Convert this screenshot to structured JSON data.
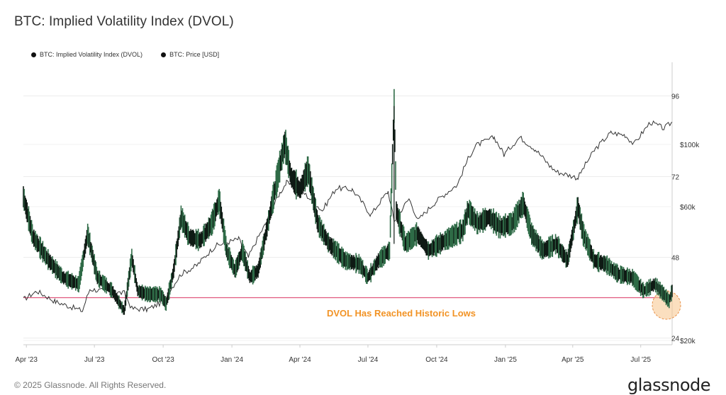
{
  "title": "BTC: Implied Volatility Index (DVOL)",
  "footer": {
    "copyright": "© 2025 Glassnode. All Rights Reserved.",
    "brand": "glassnode"
  },
  "colors": {
    "dvol": "#0f1a14",
    "dvol_fill": "#2f6b47",
    "price": "#333333",
    "reference_line": "#e0577e",
    "annotation": "#f29325",
    "highlight": "#f7c48a"
  },
  "chart_data": {
    "type": "line",
    "title": "BTC: Implied Volatility Index (DVOL)",
    "legend": [
      "BTC: Implied Volatility Index (DVOL)",
      "BTC: Price [USD]"
    ],
    "legend_placement": "top-left",
    "x_ticks": [
      "Apr '23",
      "Jul '23",
      "Oct '23",
      "Jan '24",
      "Apr '24",
      "Jul '24",
      "Oct '24",
      "Jan '25",
      "Apr '25",
      "Jul '25"
    ],
    "x_range": [
      "2023-03-28",
      "2025-08-12"
    ],
    "y_left": {
      "label": "",
      "ticks": [
        24,
        48,
        72,
        96
      ],
      "range": [
        22,
        106
      ]
    },
    "y_right": {
      "label": "",
      "scale": "log",
      "ticks": [
        "$20k",
        "$60k",
        "$100k"
      ],
      "tick_values": [
        20000,
        60000,
        100000
      ]
    },
    "series": [
      {
        "name": "BTC: Implied Volatility Index (DVOL)",
        "axis": "left",
        "points": [
          [
            "2023-03-28",
            66
          ],
          [
            "2023-04-10",
            54
          ],
          [
            "2023-05-01",
            47
          ],
          [
            "2023-05-20",
            42
          ],
          [
            "2023-06-10",
            40
          ],
          [
            "2023-06-22",
            55
          ],
          [
            "2023-07-05",
            42
          ],
          [
            "2023-07-25",
            38
          ],
          [
            "2023-08-10",
            32
          ],
          [
            "2023-08-20",
            48
          ],
          [
            "2023-08-28",
            38
          ],
          [
            "2023-09-10",
            37
          ],
          [
            "2023-09-28",
            37
          ],
          [
            "2023-10-05",
            34
          ],
          [
            "2023-10-15",
            44
          ],
          [
            "2023-10-25",
            60
          ],
          [
            "2023-11-05",
            54
          ],
          [
            "2023-11-20",
            53
          ],
          [
            "2023-12-05",
            58
          ],
          [
            "2023-12-15",
            65
          ],
          [
            "2023-12-25",
            50
          ],
          [
            "2024-01-05",
            44
          ],
          [
            "2024-01-15",
            50
          ],
          [
            "2024-01-25",
            42
          ],
          [
            "2024-02-05",
            44
          ],
          [
            "2024-02-20",
            60
          ],
          [
            "2024-03-05",
            75
          ],
          [
            "2024-03-12",
            82
          ],
          [
            "2024-03-20",
            72
          ],
          [
            "2024-04-01",
            68
          ],
          [
            "2024-04-12",
            74
          ],
          [
            "2024-04-25",
            58
          ],
          [
            "2024-05-10",
            52
          ],
          [
            "2024-06-01",
            47
          ],
          [
            "2024-06-20",
            46
          ],
          [
            "2024-07-01",
            42
          ],
          [
            "2024-07-15",
            47
          ],
          [
            "2024-07-30",
            50
          ],
          [
            "2024-08-05",
            93
          ],
          [
            "2024-08-08",
            62
          ],
          [
            "2024-08-20",
            52
          ],
          [
            "2024-09-05",
            55
          ],
          [
            "2024-09-20",
            50
          ],
          [
            "2024-10-05",
            52
          ],
          [
            "2024-10-20",
            54
          ],
          [
            "2024-11-05",
            56
          ],
          [
            "2024-11-12",
            62
          ],
          [
            "2024-11-25",
            58
          ],
          [
            "2024-12-10",
            60
          ],
          [
            "2024-12-25",
            57
          ],
          [
            "2025-01-10",
            58
          ],
          [
            "2025-01-25",
            64
          ],
          [
            "2025-02-05",
            55
          ],
          [
            "2025-02-20",
            50
          ],
          [
            "2025-03-10",
            52
          ],
          [
            "2025-03-25",
            47
          ],
          [
            "2025-04-08",
            63
          ],
          [
            "2025-04-15",
            55
          ],
          [
            "2025-04-30",
            47
          ],
          [
            "2025-05-15",
            46
          ],
          [
            "2025-06-01",
            43
          ],
          [
            "2025-06-20",
            42
          ],
          [
            "2025-07-05",
            38
          ],
          [
            "2025-07-20",
            40
          ],
          [
            "2025-08-01",
            37
          ],
          [
            "2025-08-08",
            35
          ],
          [
            "2025-08-12",
            38
          ]
        ]
      },
      {
        "name": "BTC: Price [USD]",
        "axis": "right",
        "points": [
          [
            "2023-03-28",
            28000
          ],
          [
            "2023-04-15",
            30000
          ],
          [
            "2023-05-10",
            27500
          ],
          [
            "2023-06-15",
            25500
          ],
          [
            "2023-06-25",
            30500
          ],
          [
            "2023-07-15",
            30000
          ],
          [
            "2023-08-10",
            29500
          ],
          [
            "2023-08-20",
            26000
          ],
          [
            "2023-09-10",
            25800
          ],
          [
            "2023-10-01",
            27500
          ],
          [
            "2023-10-25",
            34500
          ],
          [
            "2023-11-15",
            37000
          ],
          [
            "2023-12-10",
            43500
          ],
          [
            "2024-01-10",
            46000
          ],
          [
            "2024-01-23",
            39500
          ],
          [
            "2024-02-15",
            52000
          ],
          [
            "2024-03-05",
            67000
          ],
          [
            "2024-03-14",
            73000
          ],
          [
            "2024-04-01",
            69000
          ],
          [
            "2024-05-01",
            58000
          ],
          [
            "2024-05-20",
            70000
          ],
          [
            "2024-06-10",
            69000
          ],
          [
            "2024-07-05",
            56000
          ],
          [
            "2024-07-28",
            68000
          ],
          [
            "2024-08-05",
            53000
          ],
          [
            "2024-08-25",
            64000
          ],
          [
            "2024-09-06",
            53500
          ],
          [
            "2024-10-01",
            63000
          ],
          [
            "2024-10-29",
            72000
          ],
          [
            "2024-11-13",
            90000
          ],
          [
            "2024-11-22",
            99000
          ],
          [
            "2024-12-17",
            106000
          ],
          [
            "2024-12-30",
            92000
          ],
          [
            "2025-01-20",
            106000
          ],
          [
            "2025-02-10",
            96000
          ],
          [
            "2025-03-01",
            84000
          ],
          [
            "2025-03-10",
            80000
          ],
          [
            "2025-04-08",
            76000
          ],
          [
            "2025-05-01",
            96000
          ],
          [
            "2025-05-22",
            110000
          ],
          [
            "2025-06-10",
            108000
          ],
          [
            "2025-06-22",
            100000
          ],
          [
            "2025-07-14",
            120000
          ],
          [
            "2025-08-01",
            114000
          ],
          [
            "2025-08-12",
            120000
          ]
        ]
      }
    ],
    "reference_line": {
      "axis": "left",
      "value": 36
    },
    "annotation": {
      "text": "DVOL Has Reached Historic Lows"
    },
    "grid": "horizontal"
  }
}
